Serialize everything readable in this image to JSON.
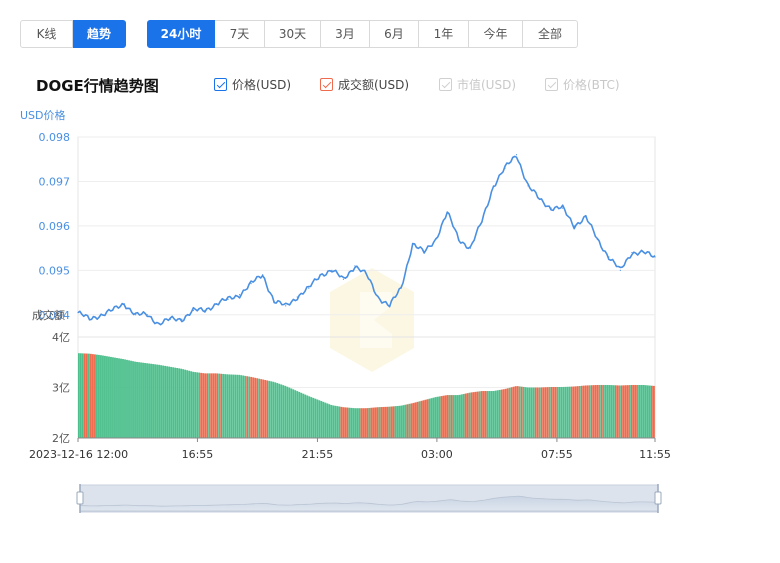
{
  "view_tabs": [
    {
      "label": "K线",
      "active": false
    },
    {
      "label": "趋势",
      "active": true
    }
  ],
  "range_tabs": [
    {
      "label": "24小时",
      "active": true
    },
    {
      "label": "7天",
      "active": false
    },
    {
      "label": "30天",
      "active": false
    },
    {
      "label": "3月",
      "active": false
    },
    {
      "label": "6月",
      "active": false
    },
    {
      "label": "1年",
      "active": false
    },
    {
      "label": "今年",
      "active": false
    },
    {
      "label": "全部",
      "active": false
    }
  ],
  "chart_title": "DOGE行情趋势图",
  "legend": [
    {
      "label": "价格(USD)",
      "checked": true,
      "color": "#4a90e2"
    },
    {
      "label": "成交额(USD)",
      "checked": true,
      "color": "#f06a4d"
    },
    {
      "label": "市值(USD)",
      "checked": false,
      "color": "#d0d0d0"
    },
    {
      "label": "价格(BTC)",
      "checked": false,
      "color": "#d0d0d0"
    }
  ],
  "colors": {
    "accent": "#1a73e8",
    "price_line": "#4a90e2",
    "volume_up": "#4cbf8c",
    "volume_down": "#f06a4d",
    "axis_text": "#4a90e2"
  },
  "chart_data": [
    {
      "type": "line",
      "title": "DOGE行情趋势图",
      "ylabel": "USD价格",
      "ylim": [
        0.0935,
        0.098
      ],
      "yticks": [
        "0.098",
        "0.097",
        "0.096",
        "0.095",
        "0.094"
      ],
      "x_ticks": [
        "2023-12-16 12:00",
        "16:55",
        "21:55",
        "03:00",
        "07:55",
        "11:55"
      ],
      "grid": true,
      "series": [
        {
          "name": "价格(USD)",
          "x": [
            0,
            0.02,
            0.04,
            0.06,
            0.08,
            0.1,
            0.12,
            0.14,
            0.16,
            0.18,
            0.2,
            0.22,
            0.24,
            0.26,
            0.28,
            0.3,
            0.32,
            0.34,
            0.36,
            0.38,
            0.4,
            0.42,
            0.44,
            0.46,
            0.48,
            0.5,
            0.52,
            0.54,
            0.56,
            0.58,
            0.6,
            0.62,
            0.64,
            0.66,
            0.68,
            0.7,
            0.72,
            0.74,
            0.76,
            0.78,
            0.8,
            0.82,
            0.84,
            0.86,
            0.88,
            0.9,
            0.92,
            0.94,
            0.96,
            0.98,
            1.0
          ],
          "values": [
            0.09405,
            0.0939,
            0.094,
            0.0941,
            0.09425,
            0.094,
            0.094,
            0.0938,
            0.0939,
            0.0939,
            0.0941,
            0.0941,
            0.09425,
            0.09435,
            0.09445,
            0.0947,
            0.0949,
            0.0943,
            0.0942,
            0.0944,
            0.0946,
            0.0949,
            0.095,
            0.0948,
            0.0951,
            0.0949,
            0.0944,
            0.0942,
            0.0946,
            0.0956,
            0.0954,
            0.0957,
            0.0963,
            0.0957,
            0.0955,
            0.0961,
            0.0969,
            0.0973,
            0.0976,
            0.0969,
            0.0966,
            0.0964,
            0.0964,
            0.096,
            0.0962,
            0.0957,
            0.0953,
            0.095,
            0.0954,
            0.0954,
            0.0953
          ]
        }
      ]
    },
    {
      "type": "bar",
      "title": "",
      "ylabel": "成交额",
      "ylim": [
        200000000,
        400000000
      ],
      "yticks": [
        "4亿",
        "3亿",
        "2亿"
      ],
      "x": [
        0,
        0.02,
        0.04,
        0.06,
        0.08,
        0.1,
        0.12,
        0.14,
        0.16,
        0.18,
        0.2,
        0.22,
        0.24,
        0.26,
        0.28,
        0.3,
        0.32,
        0.34,
        0.36,
        0.38,
        0.4,
        0.42,
        0.44,
        0.46,
        0.48,
        0.5,
        0.52,
        0.54,
        0.56,
        0.58,
        0.6,
        0.62,
        0.64,
        0.66,
        0.68,
        0.7,
        0.72,
        0.74,
        0.76,
        0.78,
        0.8,
        0.82,
        0.84,
        0.86,
        0.88,
        0.9,
        0.92,
        0.94,
        0.96,
        0.98,
        1.0
      ],
      "values": [
        368000000,
        367000000,
        364000000,
        360000000,
        356000000,
        351000000,
        348000000,
        345000000,
        341000000,
        337000000,
        331000000,
        328000000,
        328000000,
        326000000,
        325000000,
        321000000,
        316000000,
        311000000,
        303000000,
        293000000,
        283000000,
        274000000,
        265000000,
        261000000,
        259000000,
        259000000,
        261000000,
        262000000,
        264000000,
        269000000,
        275000000,
        281000000,
        285000000,
        285000000,
        290000000,
        293000000,
        293000000,
        297000000,
        303000000,
        300000000,
        300000000,
        301000000,
        301000000,
        302000000,
        304000000,
        305000000,
        305000000,
        304000000,
        305000000,
        305000000,
        303000000
      ],
      "colors_by_bar": [
        "up",
        "down",
        "up",
        "up",
        "up",
        "up",
        "up",
        "up",
        "up",
        "up",
        "up",
        "down",
        "down",
        "up",
        "up",
        "down",
        "down",
        "up",
        "up",
        "up",
        "up",
        "up",
        "up",
        "down",
        "up",
        "down",
        "down",
        "down",
        "up",
        "down",
        "down",
        "up",
        "down",
        "up",
        "down",
        "down",
        "up",
        "down",
        "down",
        "up",
        "down",
        "down",
        "up",
        "down",
        "down",
        "down",
        "up",
        "down",
        "down",
        "up",
        "down"
      ]
    }
  ]
}
